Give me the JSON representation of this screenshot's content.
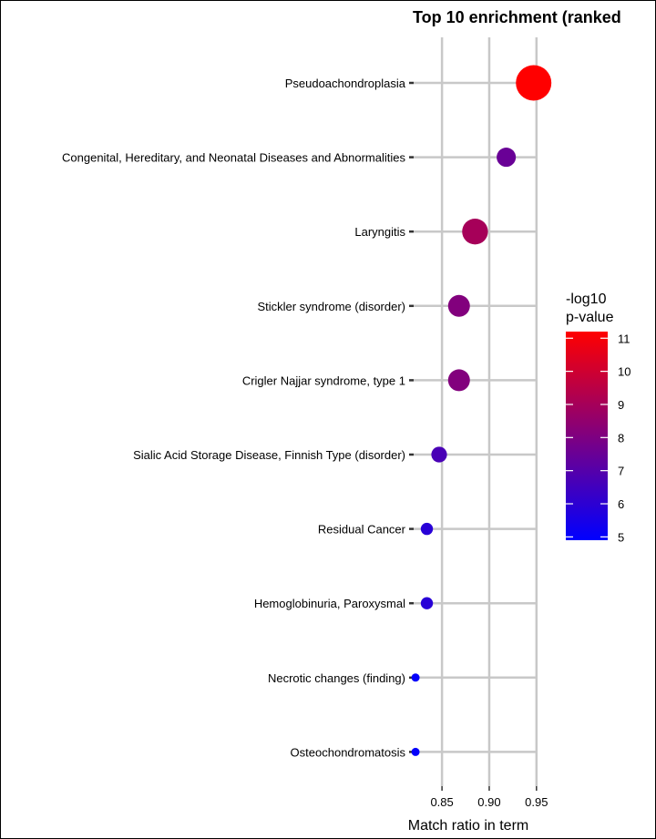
{
  "chart_data": {
    "type": "scatter",
    "title": "Top 10 enrichment (ranked",
    "xlabel": "Match ratio in term",
    "ylabel": "",
    "xlim": [
      0.82,
      0.955
    ],
    "xticks": [
      "0.85",
      "0.90",
      "0.95"
    ],
    "grid": true,
    "legend": {
      "title_line1": "-log10",
      "title_line2": "p-value",
      "placement": "right",
      "ticks": [
        "11",
        "10",
        "9",
        "8",
        "7",
        "6",
        "5"
      ],
      "range": [
        4.9,
        11.2
      ],
      "color_low": "#0000ff",
      "color_high": "#ff0000"
    },
    "terms": [
      {
        "label": "Pseudoachondroplasia",
        "x": 0.947,
        "value": 11.2
      },
      {
        "label": "Congenital, Hereditary, and Neonatal Diseases and Abnormalities",
        "x": 0.918,
        "value": 7.5
      },
      {
        "label": "Laryngitis",
        "x": 0.885,
        "value": 9.0
      },
      {
        "label": "Stickler syndrome (disorder)",
        "x": 0.868,
        "value": 8.1
      },
      {
        "label": "Crigler Najjar syndrome, type 1",
        "x": 0.868,
        "value": 8.1
      },
      {
        "label": "Sialic Acid Storage Disease, Finnish Type (disorder)",
        "x": 0.847,
        "value": 6.7
      },
      {
        "label": "Residual Cancer",
        "x": 0.834,
        "value": 5.9
      },
      {
        "label": "Hemoglobinuria, Paroxysmal",
        "x": 0.834,
        "value": 5.9
      },
      {
        "label": "Necrotic changes (finding)",
        "x": 0.822,
        "value": 5.0
      },
      {
        "label": "Osteochondromatosis",
        "x": 0.822,
        "value": 5.0
      }
    ]
  }
}
